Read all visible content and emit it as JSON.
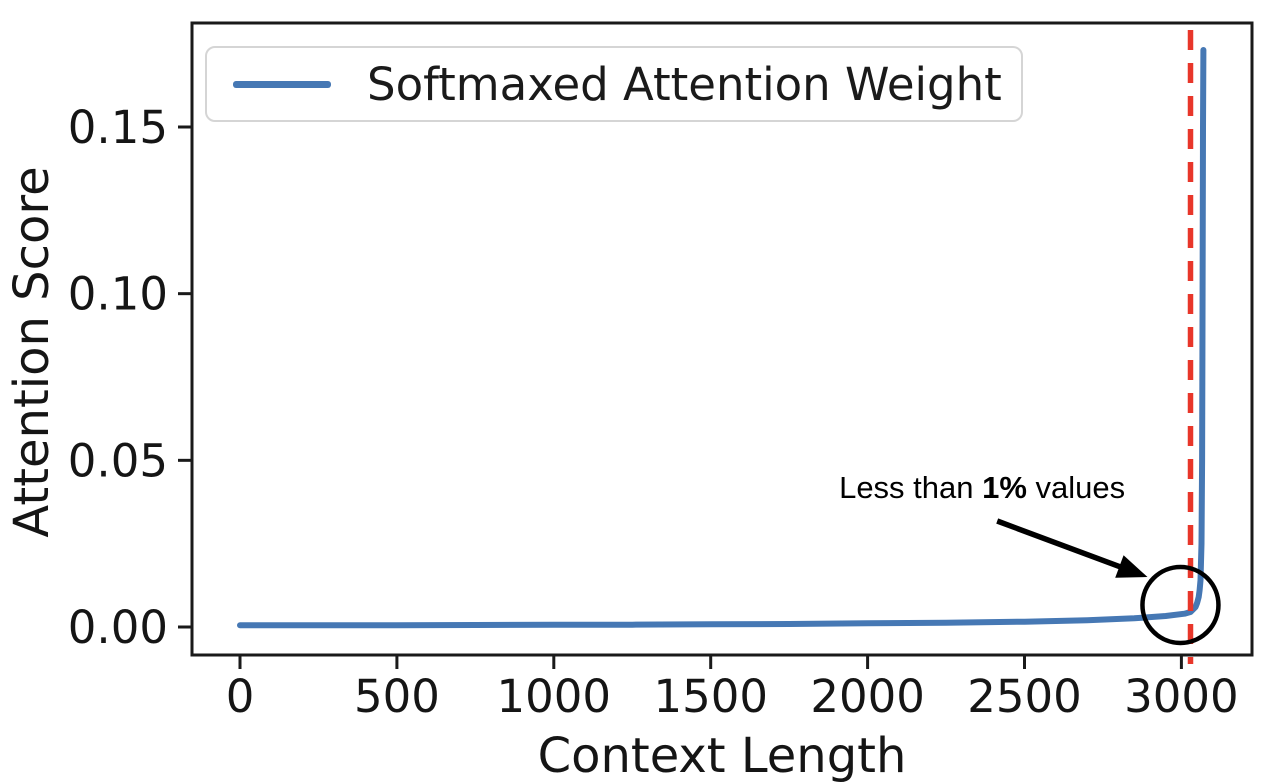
{
  "figure": {
    "background": "#ffffff",
    "axis_color": "#1a1a1a",
    "text_color": "#151515"
  },
  "chart_data": {
    "type": "line",
    "title": "",
    "xlabel": "Context Length",
    "ylabel": "Attention Score",
    "xlim": [
      -153,
      3225
    ],
    "ylim": [
      -0.0084,
      0.1812
    ],
    "grid": false,
    "legend": {
      "position": "upper left",
      "entries": [
        {
          "label": "Softmaxed Attention Weight",
          "color": "#4678b4"
        }
      ]
    },
    "xticks": [
      {
        "value": 0,
        "label": "0"
      },
      {
        "value": 500,
        "label": "500"
      },
      {
        "value": 1000,
        "label": "1000"
      },
      {
        "value": 1500,
        "label": "1500"
      },
      {
        "value": 2000,
        "label": "2000"
      },
      {
        "value": 2500,
        "label": "2500"
      },
      {
        "value": 3000,
        "label": "3000"
      }
    ],
    "yticks": [
      {
        "value": 0.0,
        "label": "0.00"
      },
      {
        "value": 0.05,
        "label": "0.05"
      },
      {
        "value": 0.1,
        "label": "0.10"
      },
      {
        "value": 0.15,
        "label": "0.15"
      }
    ],
    "series": [
      {
        "name": "Softmaxed Attention Weight",
        "color": "#4678b4",
        "line_width": 6,
        "points": [
          [
            0,
            0.0005
          ],
          [
            250,
            0.0005
          ],
          [
            500,
            0.00055
          ],
          [
            750,
            0.0006
          ],
          [
            1000,
            0.00065
          ],
          [
            1250,
            0.0007
          ],
          [
            1500,
            0.0008
          ],
          [
            1750,
            0.0009
          ],
          [
            2000,
            0.0011
          ],
          [
            2250,
            0.0013
          ],
          [
            2500,
            0.0016
          ],
          [
            2700,
            0.002
          ],
          [
            2850,
            0.0026
          ],
          [
            2950,
            0.0033
          ],
          [
            3010,
            0.004
          ],
          [
            3029,
            0.0045
          ],
          [
            3045,
            0.006
          ],
          [
            3050,
            0.0072
          ],
          [
            3055,
            0.009
          ],
          [
            3058,
            0.011
          ],
          [
            3061,
            0.014
          ],
          [
            3064,
            0.025
          ],
          [
            3066,
            0.05
          ],
          [
            3067,
            0.08
          ],
          [
            3068,
            0.115
          ],
          [
            3069,
            0.15
          ],
          [
            3070,
            0.1731
          ]
        ]
      }
    ],
    "vline": {
      "x": 3029,
      "color": "#e8362a",
      "style": "dashed",
      "line_width": 5.5
    },
    "annotations": {
      "label": {
        "text_before": "Less than ",
        "text_bold": "1%",
        "text_after": " values",
        "x": 2365,
        "y": 0.0417,
        "color": "#000000"
      },
      "arrow": {
        "x1": 2413,
        "y1": 0.0318,
        "x2": 2892,
        "y2": 0.015,
        "color": "#000000"
      },
      "circle": {
        "x": 2997,
        "y": 0.0066,
        "radius_px": 38,
        "color": "#000000"
      }
    }
  }
}
